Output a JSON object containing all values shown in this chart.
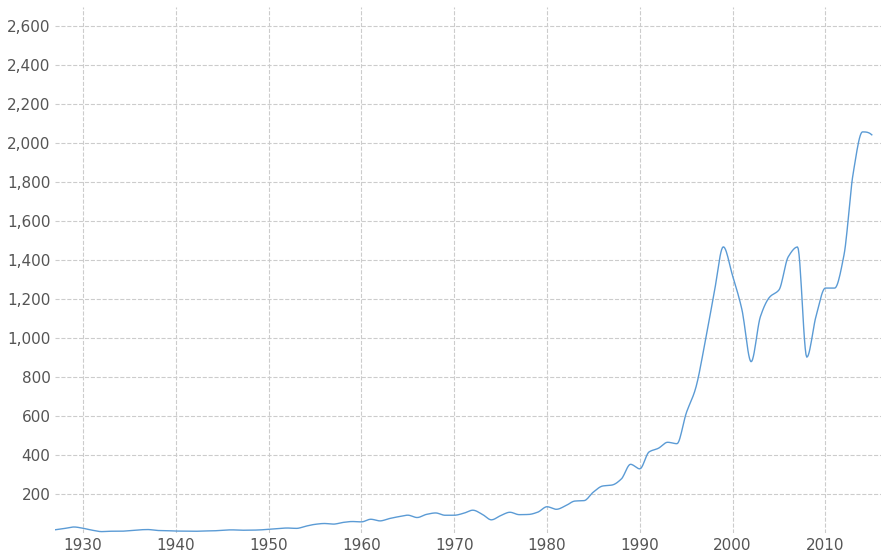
{
  "title": "",
  "line_color": "#5b9bd5",
  "background_color": "#ffffff",
  "grid_color": "#cccccc",
  "grid_style": "--",
  "xlim": [
    1927,
    2016
  ],
  "ylim": [
    0,
    2700
  ],
  "yticks": [
    200,
    400,
    600,
    800,
    1000,
    1200,
    1400,
    1600,
    1800,
    2000,
    2200,
    2400,
    2600
  ],
  "xticks": [
    1930,
    1940,
    1950,
    1960,
    1970,
    1980,
    1990,
    2000,
    2010
  ],
  "line_width": 1.0,
  "figsize": [
    8.88,
    5.6
  ],
  "dpi": 100,
  "sp500_annual": {
    "years": [
      1927,
      1928,
      1929,
      1930,
      1931,
      1932,
      1933,
      1934,
      1935,
      1936,
      1937,
      1938,
      1939,
      1940,
      1941,
      1942,
      1943,
      1944,
      1945,
      1946,
      1947,
      1948,
      1949,
      1950,
      1951,
      1952,
      1953,
      1954,
      1955,
      1956,
      1957,
      1958,
      1959,
      1960,
      1961,
      1962,
      1963,
      1964,
      1965,
      1966,
      1967,
      1968,
      1969,
      1970,
      1971,
      1972,
      1973,
      1974,
      1975,
      1976,
      1977,
      1978,
      1979,
      1980,
      1981,
      1982,
      1983,
      1984,
      1985,
      1986,
      1987,
      1988,
      1989,
      1990,
      1991,
      1992,
      1993,
      1994,
      1995,
      1996,
      1997,
      1998,
      1999,
      2000,
      2001,
      2002,
      2003,
      2004,
      2005,
      2006,
      2007,
      2008,
      2009,
      2010,
      2011,
      2012,
      2013,
      2014,
      2015
    ],
    "values": [
      17.66,
      24.35,
      31.86,
      25.12,
      15.15,
      8.12,
      10.1,
      9.84,
      13.43,
      17.18,
      18.68,
      13.88,
      13.16,
      11.02,
      10.55,
      9.77,
      11.5,
      12.07,
      15.16,
      17.08,
      15.17,
      15.53,
      16.66,
      20.41,
      23.77,
      26.57,
      24.73,
      35.98,
      45.48,
      49.74,
      46.67,
      55.21,
      59.89,
      58.11,
      71.55,
      63.1,
      75.02,
      84.75,
      92.43,
      80.33,
      96.47,
      103.86,
      92.06,
      92.15,
      102.09,
      118.05,
      97.55,
      68.56,
      90.19,
      107.46,
      95.1,
      96.11,
      107.94,
      135.76,
      122.55,
      140.64,
      164.93,
      167.24,
      211.28,
      242.17,
      247.08,
      277.72,
      353.4,
      330.22,
      417.09,
      435.71,
      466.45,
      459.27,
      615.93,
      740.74,
      970.43,
      1229.23,
      1469.25,
      1320.28,
      1148.08,
      879.82,
      1111.92,
      1211.92,
      1248.29,
      1418.3,
      1468.36,
      903.25,
      1115.1,
      1257.64,
      1257.6,
      1426.19,
      1848.36,
      2058.9,
      2043.94
    ]
  }
}
